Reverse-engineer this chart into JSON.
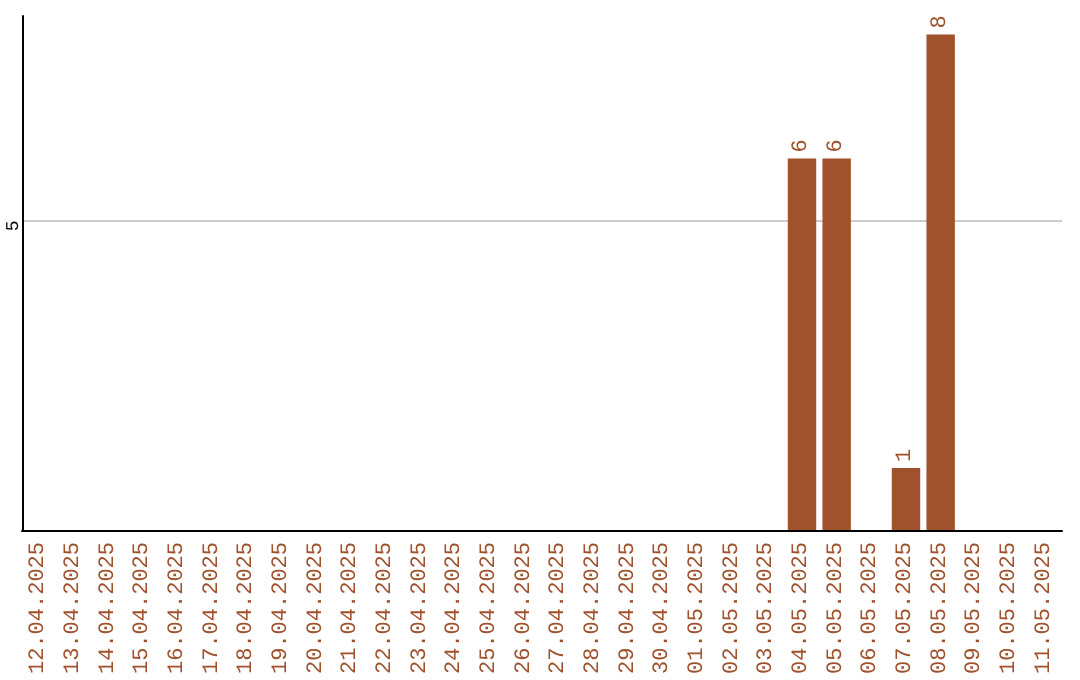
{
  "chart_data": {
    "type": "bar",
    "categories": [
      "12.04.2025",
      "13.04.2025",
      "14.04.2025",
      "15.04.2025",
      "16.04.2025",
      "17.04.2025",
      "18.04.2025",
      "19.04.2025",
      "20.04.2025",
      "21.04.2025",
      "22.04.2025",
      "23.04.2025",
      "24.04.2025",
      "25.04.2025",
      "26.04.2025",
      "27.04.2025",
      "28.04.2025",
      "29.04.2025",
      "30.04.2025",
      "01.05.2025",
      "02.05.2025",
      "03.05.2025",
      "04.05.2025",
      "05.05.2025",
      "06.05.2025",
      "07.05.2025",
      "08.05.2025",
      "09.05.2025",
      "10.05.2025",
      "11.05.2025"
    ],
    "values": [
      null,
      null,
      null,
      null,
      null,
      null,
      null,
      null,
      null,
      null,
      null,
      null,
      null,
      null,
      null,
      null,
      null,
      null,
      null,
      null,
      null,
      null,
      6,
      6,
      null,
      1,
      8,
      null,
      null,
      null
    ],
    "ylim": [
      0,
      8.3
    ],
    "value_labels": [
      null,
      null,
      null,
      null,
      null,
      null,
      null,
      null,
      null,
      null,
      null,
      null,
      null,
      null,
      null,
      null,
      null,
      null,
      null,
      null,
      null,
      null,
      "6",
      "6",
      null,
      "1",
      "8",
      null,
      null,
      null
    ],
    "color": "#a0522d",
    "ref_lines": [
      {
        "axis": "y",
        "value": 5,
        "label": "5",
        "color": "#cccccc"
      }
    ]
  }
}
